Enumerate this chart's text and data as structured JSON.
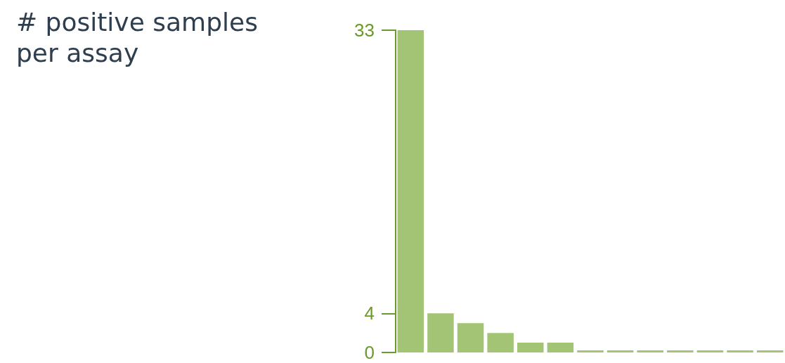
{
  "chart_data": {
    "type": "bar",
    "ylabel": "# positive samples per assay",
    "categories": [
      null,
      null,
      null,
      null,
      null,
      null,
      null,
      null,
      null,
      null,
      null,
      null,
      null
    ],
    "values": [
      33,
      4,
      3,
      2,
      1,
      1,
      0,
      0,
      0,
      0,
      0,
      0,
      0
    ],
    "color": "#a2c474",
    "ylim": [
      0,
      33
    ],
    "yticks": [
      0,
      4,
      33
    ],
    "grid": false
  }
}
